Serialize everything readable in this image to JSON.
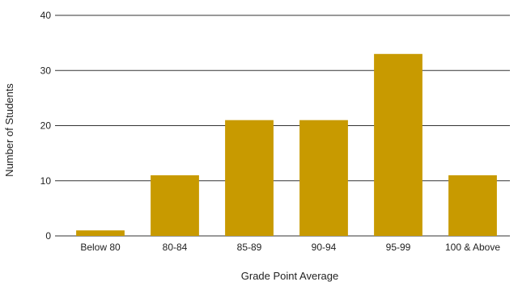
{
  "chart_data": {
    "type": "bar",
    "title": "",
    "xlabel": "Grade Point Average",
    "ylabel": "Number of Students",
    "categories": [
      "Below 80",
      "80-84",
      "85-89",
      "90-94",
      "95-99",
      "100 & Above"
    ],
    "values": [
      1,
      11,
      21,
      21,
      33,
      11
    ],
    "ylim": [
      0,
      40
    ],
    "yticks": [
      "0",
      "10",
      "20",
      "30",
      "40"
    ],
    "grid": true,
    "legend": "none",
    "colors": {
      "bar": "#c89a00",
      "grid": "#333333",
      "text": "#222222"
    }
  }
}
